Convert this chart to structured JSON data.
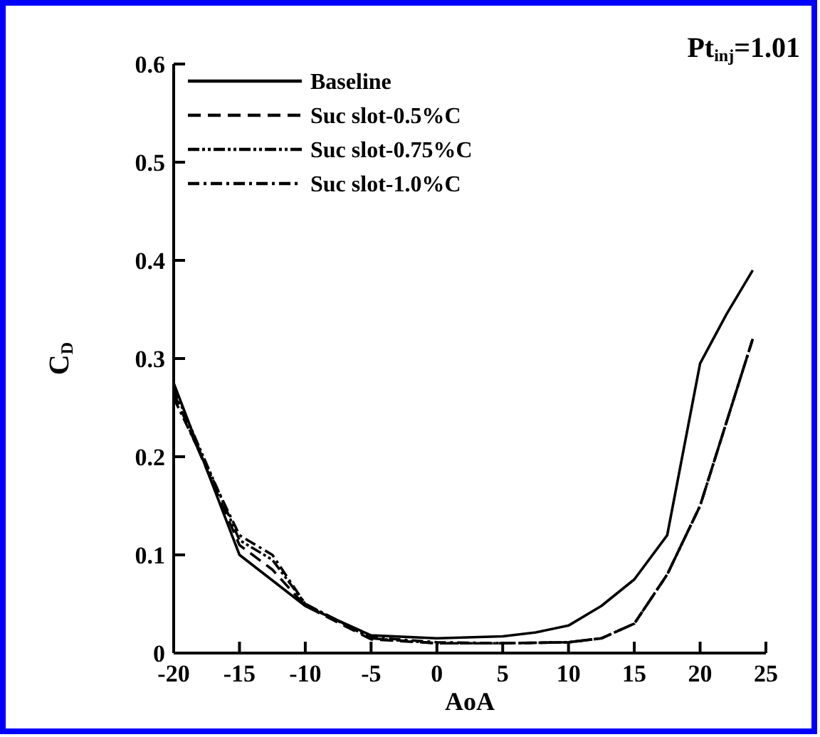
{
  "chart_data": {
    "type": "line",
    "xlabel": "AoA",
    "ylabel": "C$_{D}$",
    "annotations": [
      "Pt$_{inj}$=1.01"
    ],
    "xlim": [
      -20,
      25
    ],
    "xticks": [
      -20,
      -15,
      -10,
      -5,
      0,
      5,
      10,
      15,
      20,
      25
    ],
    "ylim": [
      0,
      0.6
    ],
    "yticks": [
      0,
      0.1,
      0.2,
      0.3,
      0.4,
      0.5,
      0.6
    ],
    "legend": "top left",
    "grid": false,
    "series": [
      {
        "name": "Baseline",
        "color": "#000000",
        "line_style": "solid",
        "x": [
          -20,
          -15,
          -10,
          -5,
          0,
          5,
          7.5,
          10,
          12.5,
          15,
          17.5,
          20,
          22,
          24
        ],
        "values": [
          0.275,
          0.1,
          0.048,
          0.018,
          0.015,
          0.017,
          0.021,
          0.028,
          0.048,
          0.075,
          0.12,
          0.295,
          0.345,
          0.39
        ]
      },
      {
        "name": "Suc slot-0.5%C",
        "color": "#000000",
        "line_style": "dashed",
        "x": [
          -20,
          -15,
          -12.5,
          -10,
          -5,
          0,
          5,
          10,
          12.5,
          15,
          17.5,
          20,
          24
        ],
        "values": [
          0.265,
          0.11,
          0.085,
          0.048,
          0.014,
          0.01,
          0.01,
          0.011,
          0.015,
          0.03,
          0.08,
          0.15,
          0.32
        ]
      },
      {
        "name": "Suc slot-0.75%C",
        "color": "#000000",
        "line_style": "dashdotdot",
        "x": [
          -20,
          -15,
          -12.5,
          -10,
          -5,
          0,
          5,
          10,
          12.5,
          15,
          17.5,
          20,
          24
        ],
        "values": [
          0.27,
          0.115,
          0.095,
          0.05,
          0.015,
          0.01,
          0.01,
          0.011,
          0.015,
          0.03,
          0.08,
          0.15,
          0.32
        ]
      },
      {
        "name": "Suc slot-1.0%C",
        "color": "#000000",
        "line_style": "dashdot",
        "x": [
          -20,
          -15,
          -12.5,
          -10,
          -5,
          0,
          5,
          10,
          12.5,
          15,
          17.5,
          20,
          24
        ],
        "values": [
          0.26,
          0.12,
          0.1,
          0.05,
          0.016,
          0.011,
          0.01,
          0.011,
          0.015,
          0.03,
          0.08,
          0.15,
          0.32
        ]
      }
    ]
  }
}
